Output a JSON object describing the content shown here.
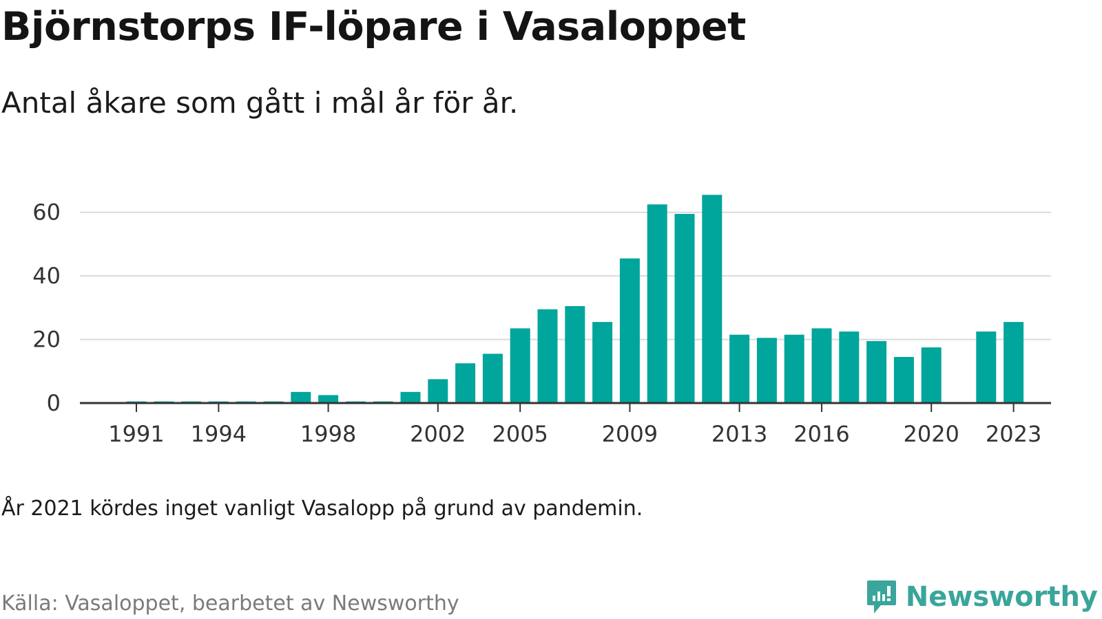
{
  "title": "Björnstorps IF-löpare i Vasaloppet",
  "subtitle": "Antal åkare som gått i mål år för år.",
  "note": "År 2021 kördes inget vanligt Vasalopp på grund av pandemin.",
  "source": "Källa: Vasaloppet, bearbetet av Newsworthy",
  "brand": {
    "name": "Newsworthy",
    "icon": "newsworthy-logo-icon",
    "color": "#3aa59a"
  },
  "chart_data": {
    "type": "bar",
    "bar_color": "#00a59b",
    "x": [
      1991,
      1992,
      1993,
      1994,
      1995,
      1996,
      1997,
      1998,
      1999,
      2000,
      2001,
      2002,
      2003,
      2004,
      2005,
      2006,
      2007,
      2008,
      2009,
      2010,
      2011,
      2012,
      2013,
      2014,
      2015,
      2016,
      2017,
      2018,
      2019,
      2020,
      2021,
      2022,
      2023
    ],
    "values": [
      0.5,
      0.5,
      0.5,
      0.5,
      0.5,
      0.5,
      3.5,
      2.5,
      0.5,
      0.5,
      3.5,
      7.5,
      12.5,
      15.5,
      23.5,
      29.5,
      30.5,
      25.5,
      45.5,
      62.5,
      59.5,
      65.5,
      21.5,
      20.5,
      21.5,
      23.5,
      22.5,
      19.5,
      14.5,
      17.5,
      null,
      22.5,
      25.5
    ],
    "xticks": [
      1991,
      1994,
      1998,
      2002,
      2005,
      2009,
      2013,
      2016,
      2020,
      2023
    ],
    "yticks": [
      0,
      20,
      40,
      60
    ],
    "ylim": [
      0,
      66
    ],
    "grid": true,
    "xlabel": "",
    "ylabel": ""
  }
}
